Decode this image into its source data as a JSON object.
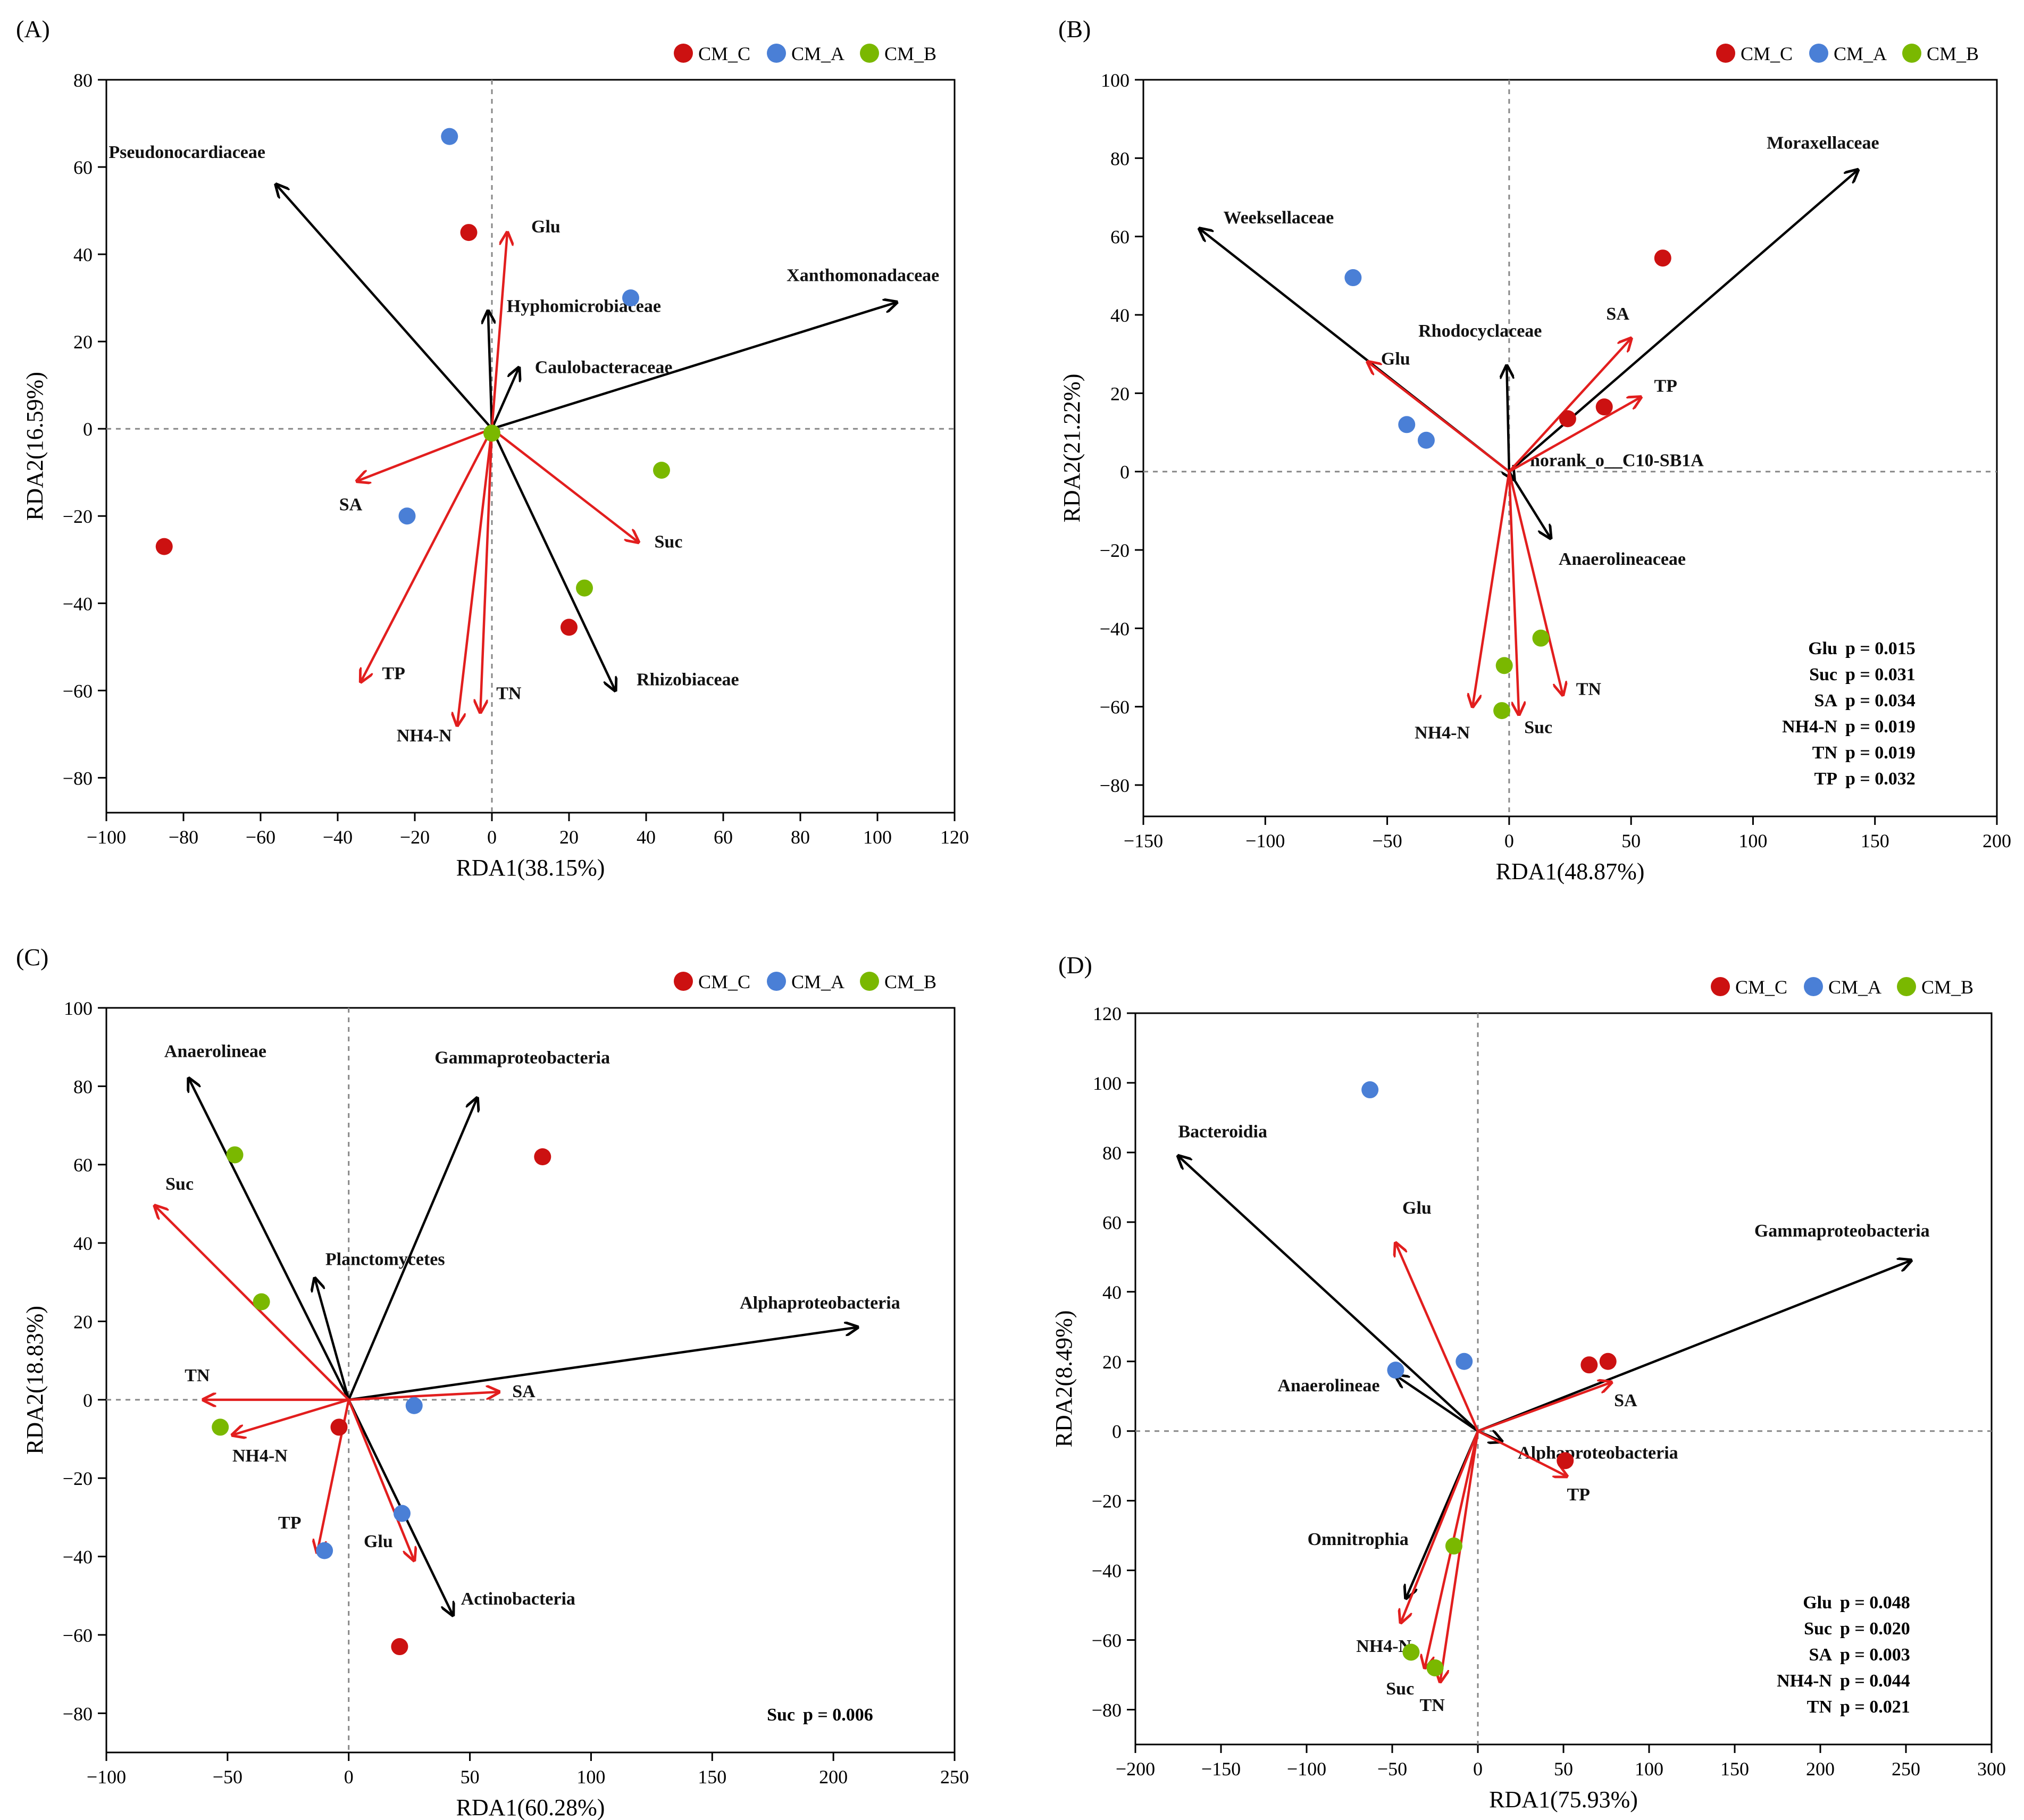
{
  "figure": {
    "colors": {
      "CM_C": "#cc1111",
      "CM_A": "#4a7fd6",
      "CM_B": "#7ab800",
      "env": "#e21e1e",
      "taxa": "#000000",
      "zero": "#888888"
    }
  },
  "chart_data": [
    {
      "type": "scatter",
      "panel": "(A)",
      "xlabel": "RDA1(38.15%)",
      "ylabel": "RDA2(16.59%)",
      "xlim": [
        -100,
        120
      ],
      "ylim": [
        -88,
        80
      ],
      "xticks": [
        -100,
        -80,
        -60,
        -40,
        -20,
        0,
        20,
        40,
        60,
        80,
        100,
        120
      ],
      "yticks": [
        -80,
        -60,
        -40,
        -20,
        0,
        20,
        40,
        60,
        80
      ],
      "legend": {
        "position": "top-right",
        "entries": [
          "CM_C",
          "CM_A",
          "CM_B"
        ]
      },
      "points": [
        {
          "group": "CM_C",
          "x": -6,
          "y": 45
        },
        {
          "group": "CM_C",
          "x": -85,
          "y": -27
        },
        {
          "group": "CM_C",
          "x": 20,
          "y": -45.5
        },
        {
          "group": "CM_A",
          "x": -11,
          "y": 67
        },
        {
          "group": "CM_A",
          "x": 36,
          "y": 30
        },
        {
          "group": "CM_A",
          "x": -22,
          "y": -20
        },
        {
          "group": "CM_B",
          "x": 0,
          "y": -1
        },
        {
          "group": "CM_B",
          "x": 44,
          "y": -9.5
        },
        {
          "group": "CM_B",
          "x": 24,
          "y": -36.5
        }
      ],
      "taxa_arrows": [
        {
          "label": "Pseudonocardiaceae",
          "x": -56,
          "y": 56,
          "anchor": "end",
          "dx": -20,
          "dy": -50
        },
        {
          "label": "Xanthomonadaceae",
          "x": 105,
          "y": 29,
          "anchor": "end",
          "dx": 80,
          "dy": -40
        },
        {
          "label": "Hyphomicrobiaceae",
          "x": -1,
          "y": 27,
          "anchor": "start",
          "dx": 35,
          "dy": 2
        },
        {
          "label": "Caulobacteraceae",
          "x": 7,
          "y": 14,
          "anchor": "start",
          "dx": 30,
          "dy": 10
        },
        {
          "label": "Rhizobiaceae",
          "x": 32,
          "y": -60,
          "anchor": "start",
          "dx": 40,
          "dy": -10
        }
      ],
      "env_arrows": [
        {
          "label": "Glu",
          "x": 4,
          "y": 45,
          "anchor": "start",
          "dx": 45,
          "dy": 0
        },
        {
          "label": "SA",
          "x": -35,
          "y": -12,
          "anchor": "end",
          "dx": 10,
          "dy": 55
        },
        {
          "label": "Suc",
          "x": 38,
          "y": -26,
          "anchor": "start",
          "dx": 30,
          "dy": 10
        },
        {
          "label": "TP",
          "x": -34,
          "y": -58,
          "anchor": "start",
          "dx": 40,
          "dy": -5
        },
        {
          "label": "NH4-N",
          "x": -9,
          "y": -68,
          "anchor": "end",
          "dx": -10,
          "dy": 30
        },
        {
          "label": "TN",
          "x": -3,
          "y": -65,
          "anchor": "start",
          "dx": 30,
          "dy": -25
        }
      ],
      "significance": []
    },
    {
      "type": "scatter",
      "panel": "(B)",
      "xlabel": "RDA1(48.87%)",
      "ylabel": "RDA2(21.22%)",
      "xlim": [
        -150,
        200
      ],
      "ylim": [
        -88,
        100
      ],
      "xticks": [
        -150,
        -100,
        -50,
        0,
        50,
        100,
        150,
        200
      ],
      "yticks": [
        -80,
        -60,
        -40,
        -20,
        0,
        20,
        40,
        60,
        80,
        100
      ],
      "legend": {
        "position": "top-right",
        "entries": [
          "CM_C",
          "CM_A",
          "CM_B"
        ]
      },
      "points": [
        {
          "group": "CM_C",
          "x": 63,
          "y": 54.5
        },
        {
          "group": "CM_C",
          "x": 24,
          "y": 13.5
        },
        {
          "group": "CM_C",
          "x": 39,
          "y": 16.5
        },
        {
          "group": "CM_A",
          "x": -64,
          "y": 49.5
        },
        {
          "group": "CM_A",
          "x": -42,
          "y": 12
        },
        {
          "group": "CM_A",
          "x": -34,
          "y": 8
        },
        {
          "group": "CM_B",
          "x": 13,
          "y": -42.5
        },
        {
          "group": "CM_B",
          "x": -2,
          "y": -49.5
        },
        {
          "group": "CM_B",
          "x": -3,
          "y": -61
        }
      ],
      "taxa_arrows": [
        {
          "label": "Moraxellaceae",
          "x": 143,
          "y": 77,
          "anchor": "end",
          "dx": 40,
          "dy": -40
        },
        {
          "label": "Weeksellaceae",
          "x": -127,
          "y": 62,
          "anchor": "start",
          "dx": 45,
          "dy": -10
        },
        {
          "label": "Rhodocyclaceae",
          "x": -1,
          "y": 27,
          "anchor": "middle",
          "dx": -50,
          "dy": -55
        },
        {
          "label": "norank_o__C10-SB1A",
          "x": 2,
          "y": -2,
          "anchor": "start",
          "dx": 30,
          "dy": -25
        },
        {
          "label": "Anaerolineaceae",
          "x": 17,
          "y": -17,
          "anchor": "start",
          "dx": 15,
          "dy": 50
        }
      ],
      "env_arrows": [
        {
          "label": "SA",
          "x": 50,
          "y": 34,
          "anchor": "middle",
          "dx": -25,
          "dy": -35
        },
        {
          "label": "TP",
          "x": 54,
          "y": 19,
          "anchor": "start",
          "dx": 25,
          "dy": -10
        },
        {
          "label": "Glu",
          "x": -58,
          "y": 28,
          "anchor": "start",
          "dx": 25,
          "dy": 5
        },
        {
          "label": "TN",
          "x": 22,
          "y": -57,
          "anchor": "start",
          "dx": 25,
          "dy": 0
        },
        {
          "label": "NH4-N",
          "x": -15,
          "y": -60,
          "anchor": "end",
          "dx": -5,
          "dy": 60
        },
        {
          "label": "Suc",
          "x": 4,
          "y": -62,
          "anchor": "start",
          "dx": 10,
          "dy": 35
        }
      ],
      "significance": [
        {
          "var": "Glu",
          "text": "p = 0.015"
        },
        {
          "var": "Suc",
          "text": "p = 0.031"
        },
        {
          "var": "SA",
          "text": "p = 0.034"
        },
        {
          "var": "NH4-N",
          "text": "p = 0.019"
        },
        {
          "var": "TN",
          "text": "p = 0.019"
        },
        {
          "var": "TP",
          "text": "p = 0.032"
        }
      ]
    },
    {
      "type": "scatter",
      "panel": "(C)",
      "xlabel": "RDA1(60.28%)",
      "ylabel": "RDA2(18.83%)",
      "xlim": [
        -100,
        250
      ],
      "ylim": [
        -90,
        100
      ],
      "xticks": [
        -100,
        -50,
        0,
        50,
        100,
        150,
        200,
        250
      ],
      "yticks": [
        -80,
        -60,
        -40,
        -20,
        0,
        20,
        40,
        60,
        80,
        100
      ],
      "legend": {
        "position": "top-right",
        "entries": [
          "CM_C",
          "CM_A",
          "CM_B"
        ]
      },
      "points": [
        {
          "group": "CM_C",
          "x": 80,
          "y": 62
        },
        {
          "group": "CM_C",
          "x": -4,
          "y": -7
        },
        {
          "group": "CM_C",
          "x": 21,
          "y": -63
        },
        {
          "group": "CM_A",
          "x": 27,
          "y": -1.5
        },
        {
          "group": "CM_A",
          "x": 22,
          "y": -29
        },
        {
          "group": "CM_A",
          "x": -10,
          "y": -38.5
        },
        {
          "group": "CM_B",
          "x": -47,
          "y": 62.5
        },
        {
          "group": "CM_B",
          "x": -36,
          "y": 25
        },
        {
          "group": "CM_B",
          "x": -53,
          "y": -7
        }
      ],
      "taxa_arrows": [
        {
          "label": "Anaerolineae",
          "x": -66,
          "y": 82,
          "anchor": "middle",
          "dx": 50,
          "dy": -40
        },
        {
          "label": "Gammaproteobacteria",
          "x": 53,
          "y": 77,
          "anchor": "start",
          "dx": -80,
          "dy": -65
        },
        {
          "label": "Planctomycetes",
          "x": -14,
          "y": 31,
          "anchor": "start",
          "dx": 20,
          "dy": -25
        },
        {
          "label": "Alphaproteobacteria",
          "x": 210,
          "y": 18.5,
          "anchor": "end",
          "dx": 80,
          "dy": -35
        },
        {
          "label": "Actinobacteria",
          "x": 43,
          "y": -55,
          "anchor": "start",
          "dx": 15,
          "dy": -20
        }
      ],
      "env_arrows": [
        {
          "label": "Suc",
          "x": -80,
          "y": 49.5,
          "anchor": "start",
          "dx": 20,
          "dy": -30
        },
        {
          "label": "SA",
          "x": 62,
          "y": 2,
          "anchor": "start",
          "dx": 25,
          "dy": 10
        },
        {
          "label": "TN",
          "x": -60,
          "y": 0,
          "anchor": "start",
          "dx": -35,
          "dy": -35
        },
        {
          "label": "NH4-N",
          "x": -48,
          "y": -9,
          "anchor": "start",
          "dx": 0,
          "dy": 50
        },
        {
          "label": "TP",
          "x": -13,
          "y": -39,
          "anchor": "end",
          "dx": -30,
          "dy": -45
        },
        {
          "label": "Glu",
          "x": 27,
          "y": -41,
          "anchor": "end",
          "dx": -40,
          "dy": -25
        }
      ],
      "significance": [
        {
          "var": "Suc",
          "text": "p = 0.006"
        }
      ]
    },
    {
      "type": "scatter",
      "panel": "(D)",
      "xlabel": "RDA1(75.93%)",
      "ylabel": "RDA2(8.49%)",
      "xlim": [
        -200,
        300
      ],
      "ylim": [
        -90,
        120
      ],
      "xticks": [
        -200,
        -150,
        -100,
        -50,
        0,
        50,
        100,
        150,
        200,
        250,
        300
      ],
      "yticks": [
        -80,
        -60,
        -40,
        -20,
        0,
        20,
        40,
        60,
        80,
        100,
        120
      ],
      "legend": {
        "position": "top-right",
        "entries": [
          "CM_C",
          "CM_A",
          "CM_B"
        ]
      },
      "points": [
        {
          "group": "CM_C",
          "x": 65,
          "y": 19
        },
        {
          "group": "CM_C",
          "x": 76,
          "y": 20
        },
        {
          "group": "CM_C",
          "x": 51,
          "y": -8.5
        },
        {
          "group": "CM_A",
          "x": -63,
          "y": 98
        },
        {
          "group": "CM_A",
          "x": -48,
          "y": 17.5
        },
        {
          "group": "CM_A",
          "x": -8,
          "y": 20
        },
        {
          "group": "CM_B",
          "x": -14,
          "y": -33
        },
        {
          "group": "CM_B",
          "x": -39,
          "y": -63.5
        },
        {
          "group": "CM_B",
          "x": -25,
          "y": -68
        }
      ],
      "taxa_arrows": [
        {
          "label": "Bacteroidia",
          "x": -175,
          "y": 79,
          "anchor": "start",
          "dx": 0,
          "dy": -35
        },
        {
          "label": "Gammaproteobacteria",
          "x": 253,
          "y": 49,
          "anchor": "end",
          "dx": 35,
          "dy": -45
        },
        {
          "label": "Anaerolineae",
          "x": -48,
          "y": 16,
          "anchor": "end",
          "dx": -30,
          "dy": 30
        },
        {
          "label": "Alphaproteobacteria",
          "x": 14,
          "y": -3,
          "anchor": "start",
          "dx": 30,
          "dy": 32
        },
        {
          "label": "Omnitrophia",
          "x": -42,
          "y": -48,
          "anchor": "end",
          "dx": 5,
          "dy": -100
        }
      ],
      "env_arrows": [
        {
          "label": "Glu",
          "x": -48,
          "y": 54,
          "anchor": "middle",
          "dx": 40,
          "dy": -55
        },
        {
          "label": "SA",
          "x": 78,
          "y": 14,
          "anchor": "start",
          "dx": 5,
          "dy": 45
        },
        {
          "label": "TP",
          "x": 52,
          "y": -13,
          "anchor": "start",
          "dx": 0,
          "dy": 45
        },
        {
          "label": "NH4-N",
          "x": -45,
          "y": -55,
          "anchor": "end",
          "dx": 20,
          "dy": 55
        },
        {
          "label": "Suc",
          "x": -31,
          "y": -68,
          "anchor": "end",
          "dx": -20,
          "dy": 50
        },
        {
          "label": "TN",
          "x": -22,
          "y": -72,
          "anchor": "middle",
          "dx": -15,
          "dy": 55
        }
      ],
      "significance": [
        {
          "var": "Glu",
          "text": "p = 0.048"
        },
        {
          "var": "Suc",
          "text": "p = 0.020"
        },
        {
          "var": "SA",
          "text": "p = 0.003"
        },
        {
          "var": "NH4-N",
          "text": "p = 0.044"
        },
        {
          "var": "TN",
          "text": "p = 0.021"
        }
      ]
    }
  ]
}
